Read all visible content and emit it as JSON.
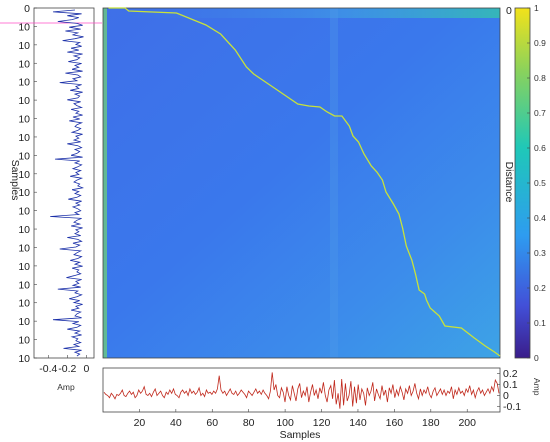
{
  "chart_data": [
    {
      "type": "heatmap",
      "title": "",
      "xlabel": "Samples",
      "ylabel": "Samples",
      "colorbar": {
        "label": "Distance",
        "range": [
          0,
          1
        ],
        "ticks": [
          "0",
          "0.1",
          "0.2",
          "0.3",
          "0.4",
          "0.5",
          "0.6",
          "0.7",
          "0.8",
          "0.9",
          "1"
        ],
        "colors": [
          "#3a1d8a",
          "#4250d8",
          "#2e9cf0",
          "#1fc8b8",
          "#8ad25c",
          "#f2e21a"
        ]
      },
      "top_right_label": "0",
      "y_tick_labels": [
        "0",
        "10",
        "10",
        "10",
        "10",
        "10",
        "10",
        "10",
        "10",
        "10",
        "10",
        "10",
        "10",
        "10",
        "10",
        "10",
        "10",
        "10",
        "10",
        "10"
      ],
      "warping_path": {
        "color": "#c8e23a",
        "points": [
          [
            3,
            0
          ],
          [
            12,
            0
          ],
          [
            14,
            3
          ],
          [
            40,
            5
          ],
          [
            56,
            17
          ],
          [
            64,
            26
          ],
          [
            72,
            42
          ],
          [
            78,
            59
          ],
          [
            82,
            66
          ],
          [
            90,
            76
          ],
          [
            98,
            86
          ],
          [
            106,
            96
          ],
          [
            112,
            98
          ],
          [
            118,
            99
          ],
          [
            122,
            104
          ],
          [
            126,
            108
          ],
          [
            130,
            108
          ],
          [
            134,
            118
          ],
          [
            136,
            128
          ],
          [
            139,
            134
          ],
          [
            142,
            146
          ],
          [
            146,
            158
          ],
          [
            149,
            164
          ],
          [
            152,
            172
          ],
          [
            154,
            184
          ],
          [
            158,
            196
          ],
          [
            161,
            206
          ],
          [
            163,
            220
          ],
          [
            165,
            238
          ],
          [
            168,
            252
          ],
          [
            170,
            266
          ],
          [
            172,
            282
          ],
          [
            175,
            286
          ],
          [
            176,
            292
          ],
          [
            178,
            300
          ],
          [
            183,
            308
          ],
          [
            186,
            318
          ],
          [
            195,
            320
          ],
          [
            202,
            330
          ],
          [
            208,
            338
          ],
          [
            213,
            344
          ],
          [
            216,
            348
          ]
        ]
      }
    },
    {
      "type": "line",
      "xlabel": "Samples",
      "ylabel": "Amp",
      "xlim": [
        0,
        218
      ],
      "ylim": [
        -0.15,
        0.25
      ],
      "x_ticks": [
        "20",
        "40",
        "60",
        "80",
        "100",
        "120",
        "140",
        "160",
        "180",
        "200"
      ],
      "y_ticks": [
        "0.2",
        "0.1",
        "0",
        "-0.1"
      ],
      "color": "#c0281c",
      "values": [
        0.03,
        0.01,
        0.0,
        -0.02,
        0.02,
        0.0,
        -0.03,
        0.01,
        0.0,
        0.02,
        0.05,
        0.0,
        -0.01,
        0.02,
        0.04,
        0.01,
        0.03,
        -0.02,
        0.0,
        0.05,
        0.02,
        0.04,
        0.08,
        0.01,
        0.0,
        0.02,
        -0.01,
        0.03,
        0.06,
        0.0,
        0.02,
        0.04,
        0.0,
        -0.02,
        0.03,
        0.01,
        0.05,
        0.02,
        0.06,
        0.01,
        0.0,
        -0.02,
        0.03,
        0.05,
        0.02,
        0.04,
        0.0,
        0.06,
        0.02,
        0.04,
        0.01,
        0.03,
        0.07,
        0.0,
        0.02,
        -0.01,
        0.05,
        0.02,
        0.03,
        0.01,
        0.04,
        0.02,
        0.06,
        0.18,
        0.05,
        0.02,
        0.04,
        0.0,
        0.03,
        0.06,
        0.02,
        0.01,
        0.04,
        0.0,
        0.02,
        0.05,
        0.03,
        0.01,
        -0.02,
        0.04,
        0.02,
        0.0,
        0.03,
        0.06,
        0.02,
        0.04,
        0.01,
        0.05,
        0.02,
        0.0,
        -0.03,
        0.04,
        0.21,
        0.05,
        0.1,
        0.0,
        -0.02,
        0.07,
        0.03,
        -0.06,
        0.08,
        0.0,
        -0.04,
        0.09,
        0.02,
        -0.05,
        0.06,
        0.11,
        -0.02,
        0.04,
        0.0,
        0.08,
        -0.06,
        0.03,
        0.1,
        0.0,
        0.05,
        -0.03,
        0.07,
        0.02,
        0.12,
        0.0,
        -0.06,
        0.05,
        0.09,
        -0.03,
        0.14,
        -0.08,
        0.02,
        -0.12,
        0.15,
        -0.09,
        0.11,
        -0.05,
        0.0,
        0.13,
        -0.1,
        0.08,
        -0.07,
        0.1,
        -0.04,
        0.06,
        0.02,
        -0.09,
        0.07,
        0.0,
        0.04,
        0.12,
        -0.05,
        0.06,
        0.01,
        -0.03,
        0.09,
        0.0,
        0.05,
        -0.06,
        0.07,
        0.02,
        0.1,
        -0.02,
        0.05,
        0.0,
        0.08,
        0.03,
        -0.04,
        0.06,
        0.02,
        0.09,
        0.0,
        0.04,
        0.11,
        0.02,
        -0.03,
        0.06,
        0.0,
        0.05,
        0.02,
        0.08,
        0.01,
        -0.02,
        0.04,
        0.07,
        0.0,
        0.03,
        0.06,
        0.01,
        0.05,
        0.0,
        0.04,
        0.02,
        0.08,
        -0.03,
        0.05,
        0.01,
        0.07,
        0.02,
        0.04,
        0.0,
        0.06,
        0.03,
        0.09,
        0.01,
        0.05,
        -0.02,
        0.04,
        0.07,
        0.02,
        0.05,
        0.0,
        0.03,
        0.06,
        0.02,
        0.08,
        0.04,
        0.14,
        0.11,
        0.02
      ]
    },
    {
      "type": "line",
      "orientation": "vertical",
      "xlabel": "Amp",
      "ylabel": "Samples",
      "x_ticks": [
        "-0.4",
        "-0.2",
        "0"
      ],
      "xlim": [
        -0.55,
        0.08
      ],
      "color": "#1a2fa8",
      "values": [
        -0.12,
        -0.35,
        -0.05,
        -0.2,
        -0.08,
        -0.15,
        -0.3,
        -0.1,
        -0.04,
        -0.18,
        -0.06,
        -0.22,
        -0.09,
        -0.14,
        -0.03,
        -0.12,
        -0.25,
        -0.07,
        -0.11,
        -0.05,
        -0.16,
        -0.08,
        -0.2,
        -0.04,
        -0.13,
        -0.07,
        -0.1,
        -0.19,
        -0.05,
        -0.12,
        -0.08,
        -0.15,
        -0.04,
        -0.22,
        -0.09,
        -0.06,
        -0.14,
        -0.1,
        -0.28,
        -0.05,
        -0.11,
        -0.08,
        -0.17,
        -0.04,
        -0.12,
        -0.07,
        -0.09,
        -0.2,
        -0.06,
        -0.13,
        -0.1,
        -0.05,
        -0.16,
        -0.08,
        -0.11,
        -0.04,
        -0.14,
        -0.07,
        -0.18,
        -0.05,
        -0.1,
        -0.12,
        -0.06,
        -0.09,
        -0.15,
        -0.04,
        -0.11,
        -0.08,
        -0.13,
        -0.06,
        -0.2,
        -0.09,
        -0.05,
        -0.12,
        -0.07,
        -0.1,
        -0.16,
        -0.04,
        -0.33,
        -0.07,
        -0.12,
        -0.05,
        -0.09,
        -0.14,
        -0.06,
        -0.11,
        -0.08,
        -0.17,
        -0.05,
        -0.1,
        -0.13,
        -0.07,
        -0.09,
        -0.04,
        -0.15,
        -0.08,
        -0.12,
        -0.06,
        -0.1,
        -0.19,
        -0.05,
        -0.11,
        -0.07,
        -0.14,
        -0.09,
        -0.06,
        -0.12,
        -0.08,
        -0.38,
        -0.05,
        -0.1,
        -0.13,
        -0.07,
        -0.16,
        -0.04,
        -0.11,
        -0.08,
        -0.12,
        -0.06,
        -0.2,
        -0.09,
        -0.05,
        -0.14,
        -0.07,
        -0.11,
        -0.28,
        -0.06,
        -0.1,
        -0.13,
        -0.05,
        -0.09,
        -0.17,
        -0.07,
        -0.12,
        -0.04,
        -0.15,
        -0.08,
        -0.1,
        -0.06,
        -0.13,
        -0.21,
        -0.05,
        -0.11,
        -0.08,
        -0.14,
        -0.06,
        -0.3,
        -0.09,
        -0.12,
        -0.05,
        -0.1,
        -0.18,
        -0.07,
        -0.13,
        -0.04,
        -0.11,
        -0.08,
        -0.16,
        -0.06,
        -0.1,
        -0.12,
        -0.05,
        -0.35,
        -0.08,
        -0.14,
        -0.06,
        -0.1,
        -0.2,
        -0.07,
        -0.12,
        -0.05,
        -0.15,
        -0.09,
        -0.11,
        -0.06,
        -0.13,
        -0.08,
        -0.24,
        -0.05,
        -0.12,
        -0.07,
        -0.1
      ]
    }
  ]
}
